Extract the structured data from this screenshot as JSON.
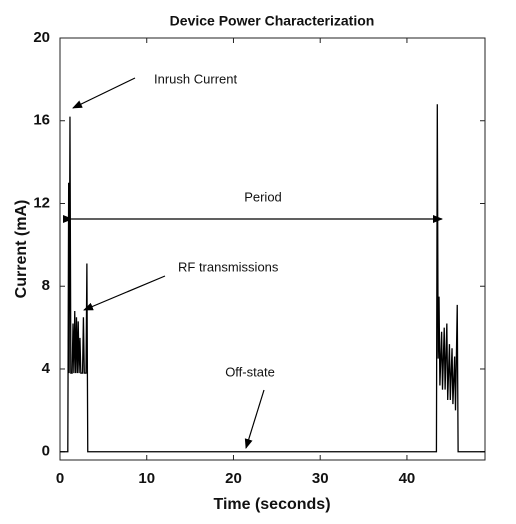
{
  "chart_data": {
    "type": "line",
    "title": "Device Power Characterization",
    "xlabel": "Time (seconds)",
    "ylabel": "Current (mA)",
    "x": [
      0,
      0.9,
      1.0,
      1.05,
      1.15,
      1.25,
      1.4,
      1.5,
      1.6,
      1.7,
      1.8,
      1.9,
      2.0,
      2.1,
      2.2,
      2.3,
      2.4,
      2.6,
      2.7,
      2.8,
      3.0,
      3.1,
      3.2,
      43.4,
      43.5,
      43.6,
      43.7,
      43.8,
      44.0,
      44.1,
      44.3,
      44.4,
      44.6,
      44.7,
      44.9,
      45.0,
      45.2,
      45.3,
      45.5,
      45.6,
      45.8,
      45.9,
      49
    ],
    "values": [
      0,
      0,
      13,
      3.8,
      16.2,
      3.8,
      3.8,
      6.2,
      3.8,
      6.8,
      3.8,
      6.5,
      3.8,
      6.3,
      3.8,
      5.5,
      3.8,
      3.8,
      6.5,
      3.8,
      3.8,
      9.1,
      0,
      0,
      16.8,
      4.5,
      7.5,
      3.2,
      5.8,
      3,
      6,
      3,
      6.2,
      2.5,
      5.2,
      2.5,
      5,
      2.3,
      4.6,
      2,
      7.1,
      0,
      0
    ],
    "color": "#000000",
    "xlim": [
      0,
      49
    ],
    "ylim": [
      -0.4,
      20
    ],
    "xticks": [
      0,
      10,
      20,
      30,
      40
    ],
    "yticks": [
      0,
      4,
      8,
      12,
      16,
      20
    ],
    "annotations": [
      "Inrush Current",
      "Period",
      "RF transmissions",
      "Off-state"
    ]
  }
}
